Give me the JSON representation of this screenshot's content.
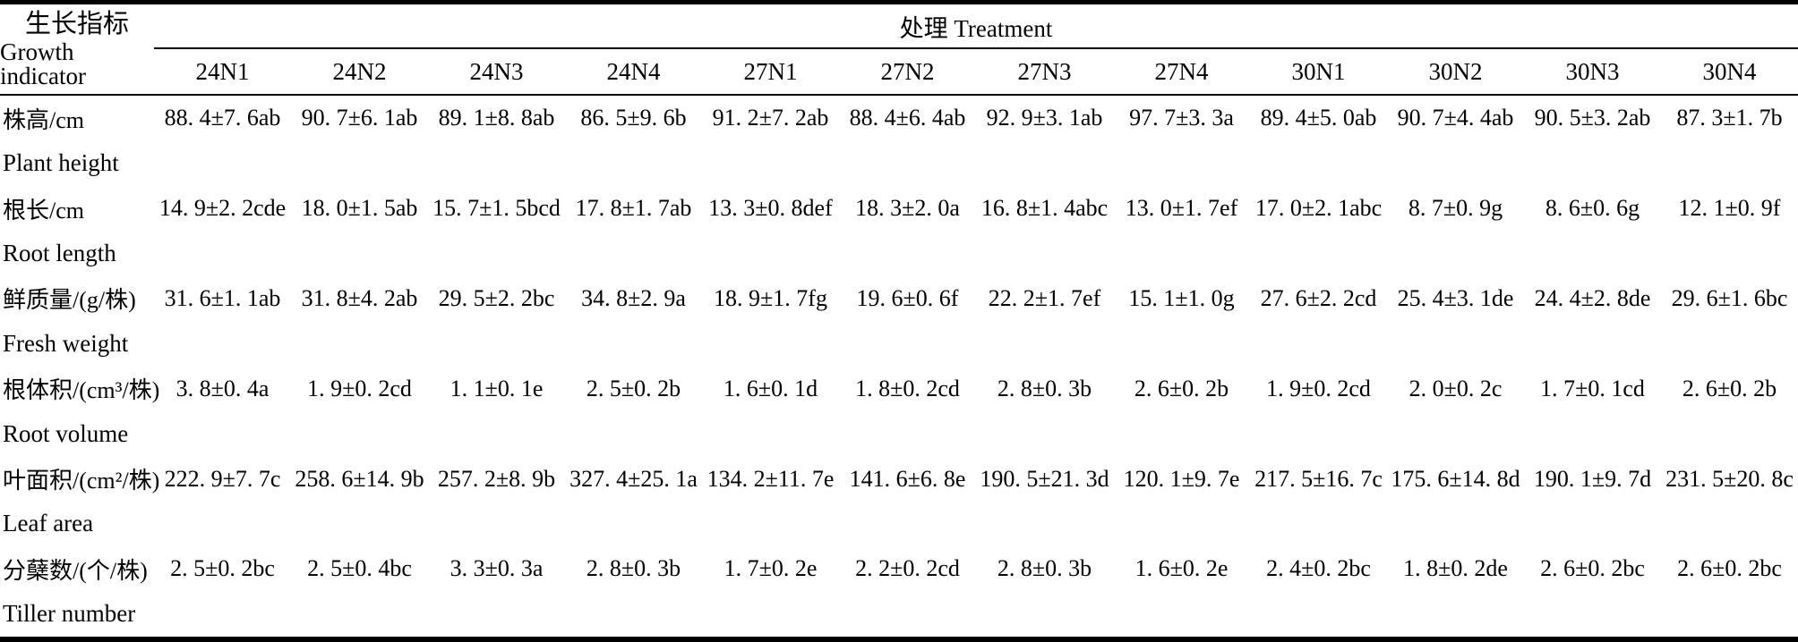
{
  "table": {
    "header": {
      "indicator_zh": "生长指标",
      "indicator_en": "Growth indicator",
      "treatment": "处理 Treatment",
      "columns": [
        "24N1",
        "24N2",
        "24N3",
        "24N4",
        "27N1",
        "27N2",
        "27N3",
        "27N4",
        "30N1",
        "30N2",
        "30N3",
        "30N4"
      ]
    },
    "rows": [
      {
        "label_zh": "株高/cm",
        "label_en": "Plant height",
        "values": [
          "88. 4±7. 6ab",
          "90. 7±6. 1ab",
          "89. 1±8. 8ab",
          "86. 5±9. 6b",
          "91. 2±7. 2ab",
          "88. 4±6. 4ab",
          "92. 9±3. 1ab",
          "97. 7±3. 3a",
          "89. 4±5. 0ab",
          "90. 7±4. 4ab",
          "90. 5±3. 2ab",
          "87. 3±1. 7b"
        ]
      },
      {
        "label_zh": "根长/cm",
        "label_en": "Root length",
        "values": [
          "14. 9±2. 2cde",
          "18. 0±1. 5ab",
          "15. 7±1. 5bcd",
          "17. 8±1. 7ab",
          "13. 3±0. 8def",
          "18. 3±2. 0a",
          "16. 8±1. 4abc",
          "13. 0±1. 7ef",
          "17. 0±2. 1abc",
          "8. 7±0. 9g",
          "8. 6±0. 6g",
          "12. 1±0. 9f"
        ]
      },
      {
        "label_zh": "鲜质量/(g/株)",
        "label_en": "Fresh weight",
        "values": [
          "31. 6±1. 1ab",
          "31. 8±4. 2ab",
          "29. 5±2. 2bc",
          "34. 8±2. 9a",
          "18. 9±1. 7fg",
          "19. 6±0. 6f",
          "22. 2±1. 7ef",
          "15. 1±1. 0g",
          "27. 6±2. 2cd",
          "25. 4±3. 1de",
          "24. 4±2. 8de",
          "29. 6±1. 6bc"
        ]
      },
      {
        "label_zh": "根体积/(cm³/株)",
        "label_en": "Root volume",
        "values": [
          "3. 8±0. 4a",
          "1. 9±0. 2cd",
          "1. 1±0. 1e",
          "2. 5±0. 2b",
          "1. 6±0. 1d",
          "1. 8±0. 2cd",
          "2. 8±0. 3b",
          "2. 6±0. 2b",
          "1. 9±0. 2cd",
          "2. 0±0. 2c",
          "1. 7±0. 1cd",
          "2. 6±0. 2b"
        ]
      },
      {
        "label_zh": "叶面积/(cm²/株)",
        "label_en": "Leaf area",
        "values": [
          "222. 9±7. 7c",
          "258. 6±14. 9b",
          "257. 2±8. 9b",
          "327. 4±25. 1a",
          "134. 2±11. 7e",
          "141. 6±6. 8e",
          "190. 5±21. 3d",
          "120. 1±9. 7e",
          "217. 5±16. 7c",
          "175. 6±14. 8d",
          "190. 1±9. 7d",
          "231. 5±20. 8c"
        ]
      },
      {
        "label_zh": "分蘖数/(个/株)",
        "label_en": "Tiller number",
        "values": [
          "2. 5±0. 2bc",
          "2. 5±0. 4bc",
          "3. 3±0. 3a",
          "2. 8±0. 3b",
          "1. 7±0. 2e",
          "2. 2±0. 2cd",
          "2. 8±0. 3b",
          "1. 6±0. 2e",
          "2. 4±0. 2bc",
          "1. 8±0. 2de",
          "2. 6±0. 2bc",
          "2. 6±0. 2bc"
        ]
      }
    ],
    "colors": {
      "text": "#000000",
      "background": "#ffffff",
      "rule": "#000000"
    }
  }
}
